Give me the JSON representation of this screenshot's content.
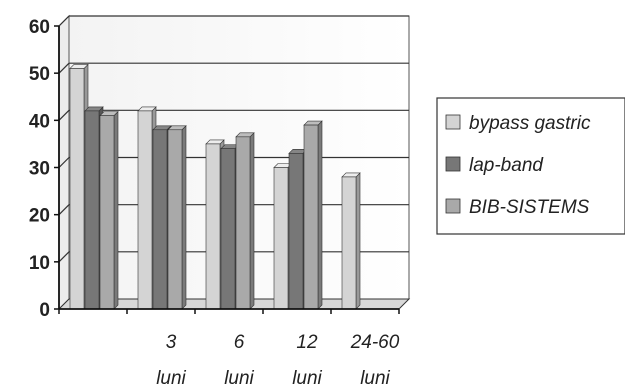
{
  "chart_data": {
    "type": "bar",
    "categories": [
      {
        "line1": "",
        "line2": ""
      },
      {
        "line1": "3",
        "line2": "luni"
      },
      {
        "line1": "6",
        "line2": "luni"
      },
      {
        "line1": "12",
        "line2": "luni"
      },
      {
        "line1": "24-60",
        "line2": "luni"
      }
    ],
    "series": [
      {
        "name": "bypass gastric",
        "values": [
          51,
          42,
          35,
          30,
          28
        ],
        "color": "#d4d4d4"
      },
      {
        "name": "lap-band",
        "values": [
          42,
          38,
          34,
          33,
          null
        ],
        "color": "#777777"
      },
      {
        "name": "BIB-SISTEMS",
        "values": [
          41,
          38,
          36.5,
          39,
          null
        ],
        "color": "#a9a9a9"
      }
    ],
    "y_ticks": [
      "0",
      "10",
      "20",
      "30",
      "40",
      "50",
      "60"
    ],
    "ylim": [
      0,
      60
    ],
    "grid": true,
    "legend_position": "right",
    "title": "",
    "xlabel": "",
    "ylabel": ""
  }
}
